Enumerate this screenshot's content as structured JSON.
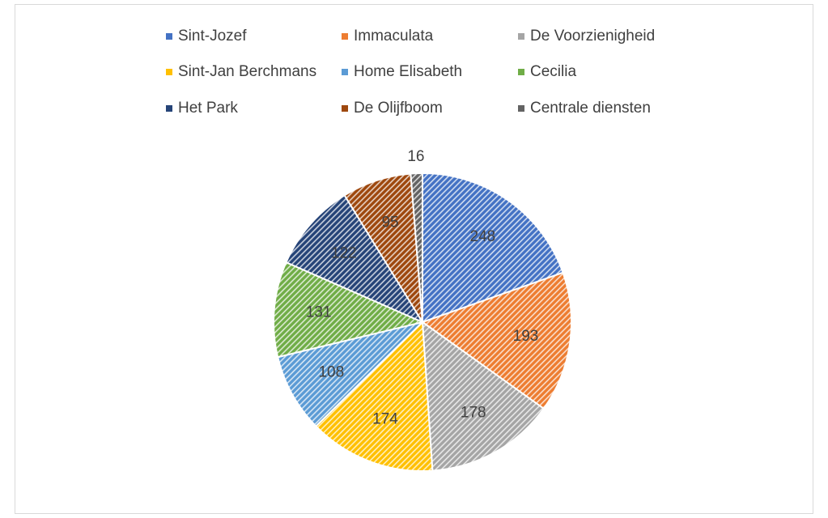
{
  "chart_data": {
    "type": "pie",
    "categories": [
      "Sint-Jozef",
      "Immaculata",
      "De Voorzienigheid",
      "Sint-Jan Berchmans",
      "Home Elisabeth",
      "Cecilia",
      "Het Park",
      "De Olijfboom",
      "Centrale diensten"
    ],
    "values": [
      248,
      193,
      178,
      174,
      108,
      131,
      122,
      95,
      16
    ],
    "colors": [
      "#4472c4",
      "#ed7d31",
      "#a5a5a5",
      "#ffc000",
      "#5b9bd5",
      "#70ad47",
      "#264478",
      "#9e480e",
      "#636363"
    ],
    "legend": "top"
  }
}
